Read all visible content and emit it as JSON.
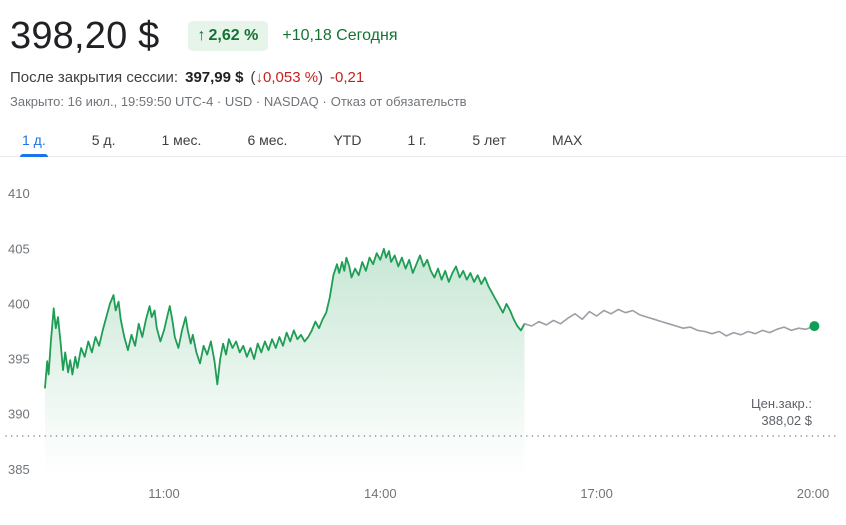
{
  "header": {
    "price": "398,20 $",
    "up_arrow": "↑",
    "change_pct": "2,62 %",
    "change_today": "+10,18 Сегодня",
    "after_hours": {
      "label": "После закрытия сессии:",
      "price": "397,99 $",
      "paren_open": "(",
      "down_arrow": "↓",
      "pct": "0,053 %",
      "paren_close": ")",
      "abs": "-0,21"
    },
    "meta": "Закрыто: 16 июл., 19:59:50 UTC-4 · USD · NASDAQ ·",
    "disclaimer": "Отказ от обязательств"
  },
  "colors": {
    "positive_green": "#137333",
    "badge_bg": "#e6f4ea",
    "negative_red": "#c5221f",
    "active_tab_blue": "#1a73e8",
    "line_green": "#1f9d55",
    "line_gray": "#9aa0a6",
    "marker_green": "#0f9d58"
  },
  "tabs": [
    {
      "id": "1d",
      "label": "1 д.",
      "active": true
    },
    {
      "id": "5d",
      "label": "5 д.",
      "active": false
    },
    {
      "id": "1m",
      "label": "1 мес.",
      "active": false
    },
    {
      "id": "6m",
      "label": "6 мес.",
      "active": false
    },
    {
      "id": "ytd",
      "label": "YTD",
      "active": false
    },
    {
      "id": "1y",
      "label": "1 г.",
      "active": false
    },
    {
      "id": "5y",
      "label": "5 лет",
      "active": false
    },
    {
      "id": "max",
      "label": "MAX",
      "active": false
    }
  ],
  "chart_data": {
    "type": "line",
    "title": "",
    "x_unit": "hours",
    "x_domain": [
      9.35,
      20.25
    ],
    "y_domain": [
      384.3,
      412.6
    ],
    "y_ticks": [
      410,
      405,
      400,
      395,
      390,
      385
    ],
    "x_ticks": [
      {
        "t": 11,
        "label": "11:00"
      },
      {
        "t": 14,
        "label": "14:00"
      },
      {
        "t": 17,
        "label": "17:00"
      },
      {
        "t": 20,
        "label": "20:00"
      }
    ],
    "previous_close": {
      "value": 388.02,
      "label_line1": "Цен.закр.:",
      "label_line2": "388,02 $"
    },
    "grid": false,
    "legend": false,
    "series": [
      {
        "name": "regular-session",
        "color": "#1f9d55",
        "fill": true,
        "points": [
          [
            9.35,
            392.4
          ],
          [
            9.38,
            394.8
          ],
          [
            9.4,
            393.6
          ],
          [
            9.43,
            396.5
          ],
          [
            9.47,
            399.6
          ],
          [
            9.5,
            397.8
          ],
          [
            9.53,
            398.8
          ],
          [
            9.57,
            396.2
          ],
          [
            9.6,
            394.0
          ],
          [
            9.63,
            395.6
          ],
          [
            9.67,
            393.8
          ],
          [
            9.7,
            394.9
          ],
          [
            9.73,
            393.6
          ],
          [
            9.77,
            395.2
          ],
          [
            9.8,
            394.2
          ],
          [
            9.85,
            396.0
          ],
          [
            9.9,
            395.2
          ],
          [
            9.95,
            396.6
          ],
          [
            10.0,
            395.6
          ],
          [
            10.05,
            397.0
          ],
          [
            10.1,
            396.2
          ],
          [
            10.15,
            397.6
          ],
          [
            10.2,
            398.8
          ],
          [
            10.25,
            400.0
          ],
          [
            10.3,
            400.8
          ],
          [
            10.33,
            399.4
          ],
          [
            10.37,
            400.2
          ],
          [
            10.4,
            398.6
          ],
          [
            10.45,
            397.0
          ],
          [
            10.5,
            395.8
          ],
          [
            10.55,
            397.2
          ],
          [
            10.6,
            396.2
          ],
          [
            10.65,
            398.2
          ],
          [
            10.7,
            397.0
          ],
          [
            10.75,
            398.6
          ],
          [
            10.8,
            399.8
          ],
          [
            10.83,
            398.8
          ],
          [
            10.87,
            399.4
          ],
          [
            10.9,
            397.8
          ],
          [
            10.95,
            396.6
          ],
          [
            11.0,
            397.6
          ],
          [
            11.05,
            399.0
          ],
          [
            11.08,
            399.8
          ],
          [
            11.12,
            398.4
          ],
          [
            11.15,
            397.0
          ],
          [
            11.2,
            396.0
          ],
          [
            11.25,
            397.6
          ],
          [
            11.3,
            398.8
          ],
          [
            11.33,
            397.6
          ],
          [
            11.37,
            396.4
          ],
          [
            11.4,
            397.2
          ],
          [
            11.45,
            395.6
          ],
          [
            11.5,
            394.6
          ],
          [
            11.55,
            396.2
          ],
          [
            11.6,
            395.4
          ],
          [
            11.65,
            396.6
          ],
          [
            11.7,
            394.8
          ],
          [
            11.74,
            392.7
          ],
          [
            11.78,
            395.0
          ],
          [
            11.82,
            396.4
          ],
          [
            11.86,
            395.4
          ],
          [
            11.9,
            396.8
          ],
          [
            11.95,
            396.0
          ],
          [
            12.0,
            396.6
          ],
          [
            12.05,
            395.6
          ],
          [
            12.1,
            396.2
          ],
          [
            12.15,
            395.2
          ],
          [
            12.2,
            396.0
          ],
          [
            12.25,
            395.0
          ],
          [
            12.3,
            396.4
          ],
          [
            12.35,
            395.6
          ],
          [
            12.4,
            396.6
          ],
          [
            12.45,
            395.8
          ],
          [
            12.5,
            396.8
          ],
          [
            12.55,
            396.0
          ],
          [
            12.6,
            397.0
          ],
          [
            12.65,
            396.2
          ],
          [
            12.7,
            397.4
          ],
          [
            12.75,
            396.6
          ],
          [
            12.8,
            397.6
          ],
          [
            12.85,
            396.8
          ],
          [
            12.9,
            397.2
          ],
          [
            12.95,
            396.6
          ],
          [
            13.0,
            397.0
          ],
          [
            13.05,
            397.6
          ],
          [
            13.1,
            398.4
          ],
          [
            13.15,
            397.8
          ],
          [
            13.2,
            398.6
          ],
          [
            13.25,
            399.2
          ],
          [
            13.3,
            400.6
          ],
          [
            13.35,
            402.6
          ],
          [
            13.4,
            403.6
          ],
          [
            13.43,
            402.8
          ],
          [
            13.47,
            403.8
          ],
          [
            13.5,
            403.0
          ],
          [
            13.53,
            404.2
          ],
          [
            13.57,
            403.4
          ],
          [
            13.6,
            402.4
          ],
          [
            13.65,
            403.2
          ],
          [
            13.7,
            402.6
          ],
          [
            13.75,
            403.8
          ],
          [
            13.8,
            403.0
          ],
          [
            13.85,
            404.2
          ],
          [
            13.9,
            403.6
          ],
          [
            13.95,
            404.6
          ],
          [
            14.0,
            404.0
          ],
          [
            14.05,
            405.0
          ],
          [
            14.08,
            404.2
          ],
          [
            14.12,
            404.8
          ],
          [
            14.15,
            403.8
          ],
          [
            14.2,
            404.4
          ],
          [
            14.25,
            403.4
          ],
          [
            14.3,
            404.2
          ],
          [
            14.35,
            403.2
          ],
          [
            14.4,
            404.0
          ],
          [
            14.45,
            402.8
          ],
          [
            14.5,
            403.6
          ],
          [
            14.55,
            404.4
          ],
          [
            14.6,
            403.4
          ],
          [
            14.65,
            404.0
          ],
          [
            14.7,
            403.0
          ],
          [
            14.75,
            402.4
          ],
          [
            14.8,
            403.2
          ],
          [
            14.85,
            402.2
          ],
          [
            14.9,
            403.0
          ],
          [
            14.95,
            402.0
          ],
          [
            15.0,
            402.8
          ],
          [
            15.05,
            403.4
          ],
          [
            15.1,
            402.4
          ],
          [
            15.15,
            403.0
          ],
          [
            15.2,
            402.2
          ],
          [
            15.25,
            402.8
          ],
          [
            15.3,
            402.0
          ],
          [
            15.35,
            402.6
          ],
          [
            15.4,
            401.8
          ],
          [
            15.45,
            402.4
          ],
          [
            15.5,
            401.6
          ],
          [
            15.55,
            401.0
          ],
          [
            15.6,
            400.4
          ],
          [
            15.65,
            399.8
          ],
          [
            15.7,
            399.2
          ],
          [
            15.75,
            400.0
          ],
          [
            15.8,
            399.4
          ],
          [
            15.85,
            398.6
          ],
          [
            15.9,
            398.0
          ],
          [
            15.95,
            397.6
          ],
          [
            16.0,
            398.2
          ]
        ]
      },
      {
        "name": "after-hours",
        "color": "#9aa0a6",
        "fill": false,
        "points": [
          [
            16.0,
            398.2
          ],
          [
            16.1,
            398.0
          ],
          [
            16.2,
            398.4
          ],
          [
            16.3,
            398.1
          ],
          [
            16.4,
            398.5
          ],
          [
            16.5,
            398.2
          ],
          [
            16.6,
            398.7
          ],
          [
            16.7,
            399.1
          ],
          [
            16.8,
            398.6
          ],
          [
            16.9,
            399.3
          ],
          [
            17.0,
            398.9
          ],
          [
            17.1,
            399.4
          ],
          [
            17.2,
            399.1
          ],
          [
            17.3,
            399.5
          ],
          [
            17.4,
            399.2
          ],
          [
            17.5,
            399.4
          ],
          [
            17.6,
            399.0
          ],
          [
            17.7,
            398.8
          ],
          [
            17.8,
            398.6
          ],
          [
            17.9,
            398.4
          ],
          [
            18.0,
            398.2
          ],
          [
            18.1,
            398.0
          ],
          [
            18.2,
            397.8
          ],
          [
            18.3,
            397.9
          ],
          [
            18.4,
            397.6
          ],
          [
            18.5,
            397.5
          ],
          [
            18.6,
            397.3
          ],
          [
            18.7,
            397.5
          ],
          [
            18.8,
            397.1
          ],
          [
            18.9,
            397.4
          ],
          [
            19.0,
            397.2
          ],
          [
            19.1,
            397.5
          ],
          [
            19.2,
            397.3
          ],
          [
            19.3,
            397.6
          ],
          [
            19.4,
            397.4
          ],
          [
            19.5,
            397.7
          ],
          [
            19.6,
            397.9
          ],
          [
            19.7,
            397.6
          ],
          [
            19.8,
            397.8
          ],
          [
            19.9,
            397.7
          ],
          [
            20.02,
            397.99
          ]
        ]
      }
    ],
    "end_marker": {
      "t": 20.02,
      "value": 397.99,
      "color": "#0f9d58"
    }
  }
}
